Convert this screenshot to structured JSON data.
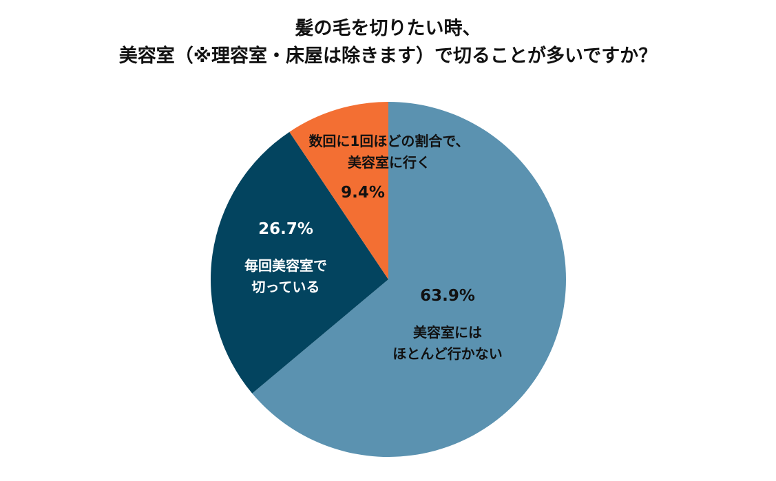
{
  "chart_data": {
    "type": "pie",
    "title_lines": [
      "髪の毛を切りたい時、",
      "美容室（※理容室・床屋は除きます）で切ることが多いですか？"
    ],
    "slices": [
      {
        "label_lines": [
          "美容室には",
          "ほとんど行かない"
        ],
        "value": 63.9,
        "value_label": "63.9%",
        "color": "#5b92b0",
        "text_color": "#111111"
      },
      {
        "label_lines": [
          "毎回美容室で",
          "切っている"
        ],
        "value": 26.7,
        "value_label": "26.7%",
        "color": "#03445f",
        "text_color": "#ffffff"
      },
      {
        "label_lines": [
          "数回に1回ほどの割合で、",
          "美容室に行く"
        ],
        "value": 9.4,
        "value_label": "9.4%",
        "color": "#f36f33",
        "text_color": "#111111"
      }
    ]
  }
}
